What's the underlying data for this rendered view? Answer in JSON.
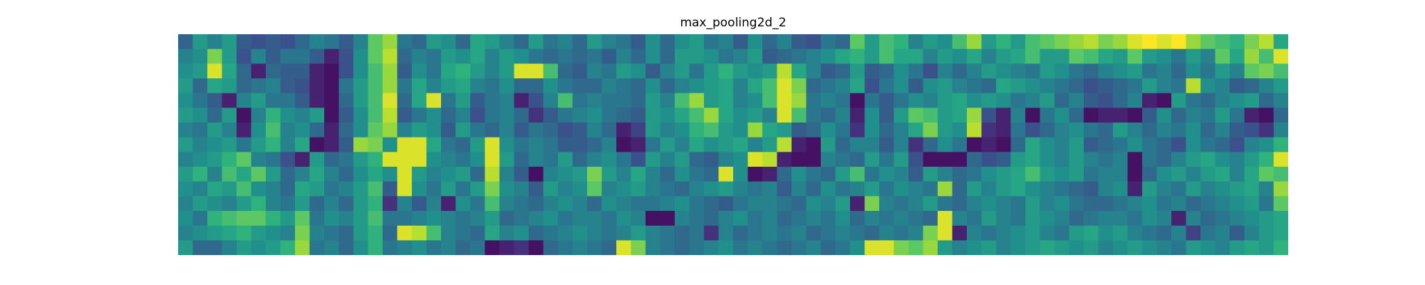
{
  "chart_data": {
    "type": "heatmap",
    "title": "max_pooling2d_2",
    "colormap": "viridis",
    "axes_visible": false,
    "grid": false,
    "n_rows": 15,
    "n_cols": 76,
    "values": [
      [
        0.33,
        0.55,
        0.45,
        0.55,
        0.3,
        0.25,
        0.3,
        0.25,
        0.35,
        0.45,
        0.4,
        0.3,
        0.45,
        0.75,
        0.85,
        0.4,
        0.35,
        0.55,
        0.5,
        0.35,
        0.6,
        0.55,
        0.45,
        0.35,
        0.55,
        0.4,
        0.45,
        0.35,
        0.55,
        0.45,
        0.4,
        0.3,
        0.5,
        0.35,
        0.5,
        0.55,
        0.4,
        0.45,
        0.3,
        0.5,
        0.35,
        0.45,
        0.3,
        0.25,
        0.4,
        0.35,
        0.75,
        0.55,
        0.7,
        0.65,
        0.45,
        0.55,
        0.5,
        0.7,
        0.85,
        0.55,
        0.65,
        0.55,
        0.7,
        0.75,
        0.8,
        0.85,
        0.9,
        0.8,
        0.85,
        0.95,
        1.0,
        0.95,
        1.0,
        0.85,
        0.75,
        0.7,
        0.65,
        0.8,
        0.9,
        0.6
      ],
      [
        0.45,
        0.5,
        0.8,
        0.55,
        0.25,
        0.45,
        0.3,
        0.4,
        0.4,
        0.3,
        0.1,
        0.25,
        0.5,
        0.75,
        0.9,
        0.35,
        0.45,
        0.4,
        0.55,
        0.5,
        0.6,
        0.45,
        0.55,
        0.5,
        0.4,
        0.35,
        0.4,
        0.35,
        0.4,
        0.3,
        0.45,
        0.35,
        0.5,
        0.35,
        0.55,
        0.55,
        0.5,
        0.4,
        0.45,
        0.55,
        0.3,
        0.35,
        0.4,
        0.45,
        0.5,
        0.6,
        0.65,
        0.55,
        0.7,
        0.6,
        0.6,
        0.45,
        0.55,
        0.5,
        0.6,
        0.45,
        0.55,
        0.6,
        0.7,
        0.55,
        0.55,
        0.75,
        0.7,
        0.6,
        0.55,
        0.75,
        0.55,
        0.5,
        0.4,
        0.55,
        0.45,
        0.75,
        0.6,
        0.85,
        0.7,
        0.95
      ],
      [
        0.5,
        0.55,
        0.95,
        0.6,
        0.35,
        0.1,
        0.35,
        0.3,
        0.3,
        0.1,
        0.05,
        0.25,
        0.5,
        0.7,
        0.85,
        0.3,
        0.5,
        0.4,
        0.6,
        0.65,
        0.55,
        0.45,
        0.55,
        0.95,
        0.95,
        0.7,
        0.35,
        0.3,
        0.45,
        0.4,
        0.55,
        0.5,
        0.3,
        0.45,
        0.55,
        0.4,
        0.55,
        0.65,
        0.55,
        0.5,
        0.55,
        0.9,
        0.6,
        0.45,
        0.3,
        0.35,
        0.55,
        0.3,
        0.35,
        0.5,
        0.4,
        0.25,
        0.45,
        0.35,
        0.45,
        0.55,
        0.5,
        0.45,
        0.4,
        0.55,
        0.5,
        0.4,
        0.35,
        0.45,
        0.5,
        0.55,
        0.4,
        0.45,
        0.35,
        0.5,
        0.4,
        0.55,
        0.45,
        0.75,
        0.8,
        0.7
      ],
      [
        0.55,
        0.35,
        0.6,
        0.55,
        0.35,
        0.4,
        0.45,
        0.3,
        0.25,
        0.1,
        0.05,
        0.4,
        0.55,
        0.7,
        0.85,
        0.4,
        0.6,
        0.45,
        0.55,
        0.6,
        0.45,
        0.4,
        0.5,
        0.35,
        0.35,
        0.5,
        0.4,
        0.35,
        0.35,
        0.45,
        0.4,
        0.35,
        0.5,
        0.35,
        0.45,
        0.5,
        0.55,
        0.6,
        0.45,
        0.6,
        0.7,
        0.95,
        0.8,
        0.35,
        0.4,
        0.45,
        0.6,
        0.25,
        0.4,
        0.5,
        0.3,
        0.5,
        0.55,
        0.45,
        0.4,
        0.35,
        0.6,
        0.55,
        0.5,
        0.45,
        0.4,
        0.35,
        0.25,
        0.3,
        0.35,
        0.4,
        0.55,
        0.45,
        0.4,
        0.9,
        0.5,
        0.45,
        0.3,
        0.35,
        0.45,
        0.55
      ],
      [
        0.5,
        0.4,
        0.3,
        0.1,
        0.45,
        0.55,
        0.4,
        0.4,
        0.3,
        0.1,
        0.05,
        0.35,
        0.55,
        0.7,
        0.95,
        0.35,
        0.6,
        0.95,
        0.4,
        0.55,
        0.3,
        0.4,
        0.45,
        0.1,
        0.25,
        0.45,
        0.7,
        0.4,
        0.45,
        0.4,
        0.4,
        0.35,
        0.55,
        0.45,
        0.7,
        0.85,
        0.55,
        0.6,
        0.45,
        0.5,
        0.7,
        0.95,
        0.85,
        0.4,
        0.45,
        0.4,
        0.05,
        0.4,
        0.3,
        0.4,
        0.5,
        0.45,
        0.55,
        0.6,
        0.5,
        0.55,
        0.5,
        0.4,
        0.45,
        0.55,
        0.35,
        0.45,
        0.3,
        0.25,
        0.35,
        0.45,
        0.1,
        0.05,
        0.55,
        0.4,
        0.35,
        0.45,
        0.5,
        0.55,
        0.35,
        0.45
      ],
      [
        0.55,
        0.5,
        0.35,
        0.55,
        0.05,
        0.45,
        0.65,
        0.5,
        0.45,
        0.55,
        0.05,
        0.3,
        0.5,
        0.7,
        0.9,
        0.3,
        0.4,
        0.5,
        0.35,
        0.45,
        0.25,
        0.4,
        0.45,
        0.35,
        0.15,
        0.3,
        0.4,
        0.45,
        0.5,
        0.4,
        0.35,
        0.3,
        0.55,
        0.5,
        0.6,
        0.7,
        0.85,
        0.6,
        0.5,
        0.55,
        0.45,
        0.95,
        0.7,
        0.4,
        0.35,
        0.45,
        0.1,
        0.5,
        0.3,
        0.55,
        0.75,
        0.7,
        0.55,
        0.6,
        0.85,
        0.25,
        0.1,
        0.45,
        0.05,
        0.4,
        0.5,
        0.35,
        0.05,
        0.1,
        0.1,
        0.05,
        0.3,
        0.5,
        0.35,
        0.45,
        0.4,
        0.55,
        0.4,
        0.1,
        0.05,
        0.35
      ],
      [
        0.45,
        0.4,
        0.55,
        0.45,
        0.1,
        0.5,
        0.7,
        0.45,
        0.5,
        0.35,
        0.1,
        0.35,
        0.5,
        0.75,
        0.85,
        0.45,
        0.55,
        0.5,
        0.3,
        0.55,
        0.4,
        0.35,
        0.45,
        0.3,
        0.4,
        0.35,
        0.25,
        0.3,
        0.45,
        0.35,
        0.1,
        0.2,
        0.55,
        0.45,
        0.5,
        0.65,
        0.7,
        0.55,
        0.5,
        0.85,
        0.6,
        0.55,
        0.3,
        0.35,
        0.5,
        0.4,
        0.15,
        0.5,
        0.35,
        0.45,
        0.6,
        0.8,
        0.55,
        0.5,
        0.9,
        0.15,
        0.1,
        0.4,
        0.25,
        0.35,
        0.45,
        0.5,
        0.4,
        0.35,
        0.55,
        0.45,
        0.35,
        0.45,
        0.4,
        0.5,
        0.35,
        0.45,
        0.3,
        0.25,
        0.15,
        0.45
      ],
      [
        0.55,
        0.45,
        0.5,
        0.55,
        0.4,
        0.55,
        0.65,
        0.45,
        0.6,
        0.05,
        0.1,
        0.3,
        0.85,
        0.8,
        0.5,
        0.95,
        0.95,
        0.6,
        0.4,
        0.35,
        0.55,
        0.95,
        0.5,
        0.4,
        0.45,
        0.4,
        0.3,
        0.3,
        0.35,
        0.45,
        0.05,
        0.1,
        0.4,
        0.55,
        0.45,
        0.6,
        0.5,
        0.55,
        0.6,
        0.45,
        0.55,
        0.9,
        0.1,
        0.05,
        0.55,
        0.35,
        0.45,
        0.45,
        0.3,
        0.45,
        0.15,
        0.35,
        0.5,
        0.4,
        0.05,
        0.1,
        0.05,
        0.35,
        0.6,
        0.5,
        0.45,
        0.55,
        0.3,
        0.35,
        0.4,
        0.5,
        0.4,
        0.35,
        0.25,
        0.5,
        0.4,
        0.35,
        0.25,
        0.45,
        0.5,
        0.65
      ],
      [
        0.45,
        0.5,
        0.55,
        0.65,
        0.75,
        0.45,
        0.4,
        0.25,
        0.1,
        0.55,
        0.35,
        0.4,
        0.55,
        0.65,
        0.95,
        0.95,
        0.95,
        0.5,
        0.45,
        0.4,
        0.5,
        0.95,
        0.55,
        0.35,
        0.45,
        0.4,
        0.55,
        0.35,
        0.45,
        0.5,
        0.4,
        0.25,
        0.55,
        0.45,
        0.55,
        0.35,
        0.3,
        0.45,
        0.5,
        0.95,
        0.9,
        0.1,
        0.05,
        0.05,
        0.45,
        0.4,
        0.35,
        0.55,
        0.4,
        0.55,
        0.25,
        0.05,
        0.05,
        0.05,
        0.35,
        0.25,
        0.3,
        0.55,
        0.6,
        0.5,
        0.45,
        0.55,
        0.45,
        0.4,
        0.45,
        0.05,
        0.4,
        0.35,
        0.45,
        0.55,
        0.6,
        0.5,
        0.45,
        0.55,
        0.65,
        0.95
      ],
      [
        0.55,
        0.65,
        0.45,
        0.7,
        0.6,
        0.75,
        0.55,
        0.35,
        0.45,
        0.6,
        0.45,
        0.35,
        0.5,
        0.6,
        0.5,
        0.95,
        0.55,
        0.45,
        0.5,
        0.55,
        0.35,
        0.9,
        0.45,
        0.3,
        0.05,
        0.45,
        0.5,
        0.55,
        0.8,
        0.55,
        0.45,
        0.6,
        0.45,
        0.35,
        0.5,
        0.4,
        0.35,
        0.95,
        0.5,
        0.05,
        0.1,
        0.35,
        0.5,
        0.4,
        0.35,
        0.55,
        0.7,
        0.4,
        0.5,
        0.45,
        0.3,
        0.55,
        0.45,
        0.35,
        0.4,
        0.5,
        0.55,
        0.6,
        0.7,
        0.55,
        0.5,
        0.55,
        0.4,
        0.45,
        0.45,
        0.05,
        0.35,
        0.5,
        0.55,
        0.45,
        0.55,
        0.6,
        0.45,
        0.6,
        0.75,
        0.7
      ],
      [
        0.5,
        0.45,
        0.6,
        0.55,
        0.7,
        0.5,
        0.45,
        0.35,
        0.6,
        0.55,
        0.4,
        0.45,
        0.55,
        0.7,
        0.3,
        0.95,
        0.5,
        0.4,
        0.55,
        0.4,
        0.55,
        0.8,
        0.5,
        0.45,
        0.3,
        0.55,
        0.45,
        0.5,
        0.75,
        0.45,
        0.5,
        0.55,
        0.45,
        0.4,
        0.35,
        0.45,
        0.5,
        0.55,
        0.45,
        0.4,
        0.45,
        0.3,
        0.45,
        0.35,
        0.5,
        0.4,
        0.45,
        0.55,
        0.4,
        0.5,
        0.45,
        0.4,
        0.85,
        0.35,
        0.55,
        0.45,
        0.55,
        0.6,
        0.5,
        0.45,
        0.4,
        0.35,
        0.3,
        0.45,
        0.5,
        0.1,
        0.55,
        0.45,
        0.4,
        0.55,
        0.45,
        0.5,
        0.55,
        0.6,
        0.45,
        0.85
      ],
      [
        0.45,
        0.55,
        0.5,
        0.45,
        0.55,
        0.65,
        0.45,
        0.4,
        0.55,
        0.35,
        0.45,
        0.35,
        0.55,
        0.65,
        0.15,
        0.45,
        0.3,
        0.45,
        0.1,
        0.5,
        0.4,
        0.7,
        0.45,
        0.4,
        0.35,
        0.45,
        0.5,
        0.45,
        0.35,
        0.5,
        0.45,
        0.4,
        0.4,
        0.45,
        0.5,
        0.4,
        0.35,
        0.3,
        0.4,
        0.45,
        0.45,
        0.4,
        0.35,
        0.5,
        0.45,
        0.55,
        0.1,
        0.8,
        0.45,
        0.4,
        0.45,
        0.55,
        0.4,
        0.35,
        0.45,
        0.5,
        0.45,
        0.4,
        0.55,
        0.45,
        0.5,
        0.4,
        0.35,
        0.35,
        0.4,
        0.45,
        0.5,
        0.4,
        0.45,
        0.35,
        0.4,
        0.45,
        0.5,
        0.55,
        0.4,
        0.75
      ],
      [
        0.5,
        0.4,
        0.65,
        0.7,
        0.75,
        0.75,
        0.65,
        0.55,
        0.75,
        0.4,
        0.5,
        0.45,
        0.55,
        0.7,
        0.4,
        0.4,
        0.45,
        0.5,
        0.45,
        0.4,
        0.45,
        0.55,
        0.35,
        0.4,
        0.45,
        0.5,
        0.4,
        0.45,
        0.45,
        0.4,
        0.5,
        0.45,
        0.05,
        0.05,
        0.45,
        0.4,
        0.35,
        0.45,
        0.5,
        0.4,
        0.45,
        0.35,
        0.4,
        0.45,
        0.4,
        0.5,
        0.35,
        0.45,
        0.4,
        0.45,
        0.4,
        0.35,
        0.95,
        0.45,
        0.4,
        0.55,
        0.45,
        0.4,
        0.55,
        0.5,
        0.45,
        0.35,
        0.4,
        0.45,
        0.45,
        0.4,
        0.5,
        0.45,
        0.1,
        0.45,
        0.35,
        0.4,
        0.45,
        0.5,
        0.55,
        0.6
      ],
      [
        0.45,
        0.5,
        0.55,
        0.6,
        0.65,
        0.55,
        0.5,
        0.45,
        0.8,
        0.45,
        0.4,
        0.35,
        0.55,
        0.65,
        0.35,
        0.95,
        0.9,
        0.7,
        0.45,
        0.4,
        0.35,
        0.6,
        0.45,
        0.5,
        0.35,
        0.4,
        0.45,
        0.5,
        0.45,
        0.4,
        0.45,
        0.55,
        0.45,
        0.4,
        0.35,
        0.4,
        0.15,
        0.45,
        0.35,
        0.4,
        0.45,
        0.4,
        0.45,
        0.35,
        0.4,
        0.45,
        0.4,
        0.35,
        0.45,
        0.4,
        0.45,
        0.8,
        0.95,
        0.1,
        0.45,
        0.4,
        0.45,
        0.5,
        0.55,
        0.45,
        0.4,
        0.55,
        0.6,
        0.5,
        0.55,
        0.45,
        0.4,
        0.35,
        0.45,
        0.2,
        0.4,
        0.45,
        0.3,
        0.45,
        0.55,
        0.6
      ],
      [
        0.55,
        0.35,
        0.35,
        0.45,
        0.55,
        0.5,
        0.55,
        0.65,
        0.85,
        0.4,
        0.45,
        0.35,
        0.5,
        0.65,
        0.4,
        0.45,
        0.5,
        0.4,
        0.45,
        0.35,
        0.4,
        0.05,
        0.1,
        0.15,
        0.05,
        0.35,
        0.4,
        0.45,
        0.4,
        0.35,
        0.95,
        0.8,
        0.45,
        0.4,
        0.35,
        0.4,
        0.45,
        0.5,
        0.4,
        0.45,
        0.4,
        0.35,
        0.4,
        0.45,
        0.35,
        0.4,
        0.5,
        0.95,
        0.95,
        0.8,
        0.75,
        0.85,
        0.55,
        0.45,
        0.5,
        0.55,
        0.45,
        0.5,
        0.55,
        0.6,
        0.55,
        0.5,
        0.55,
        0.45,
        0.5,
        0.55,
        0.5,
        0.45,
        0.4,
        0.55,
        0.5,
        0.45,
        0.55,
        0.6,
        0.55,
        0.65
      ]
    ]
  }
}
